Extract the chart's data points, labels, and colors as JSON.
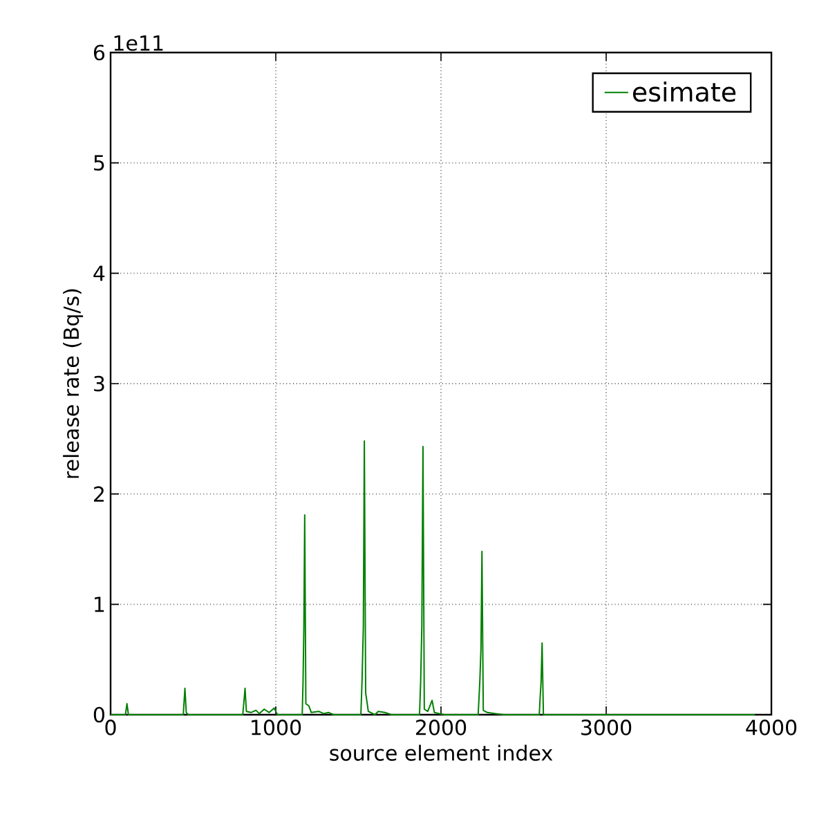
{
  "chart_data": {
    "type": "line",
    "xlabel": "source element index",
    "ylabel": "release rate (Bq/s)",
    "annotations": [
      "1e11"
    ],
    "xlim": [
      0,
      4000
    ],
    "xticks": [
      0,
      1000,
      2000,
      3000,
      4000
    ],
    "ylim": [
      0,
      6
    ],
    "yticks": [
      0,
      1,
      2,
      3,
      4,
      5,
      6
    ],
    "grid": true,
    "legend": "top right",
    "line_style": "solid",
    "series": [
      {
        "name": "esimate",
        "color": "#008000",
        "x": [
          0,
          90,
          99,
          108,
          440,
          450,
          458,
          470,
          800,
          806,
          814,
          822,
          850,
          880,
          900,
          930,
          960,
          990,
          1010,
          1160,
          1165,
          1170,
          1175,
          1182,
          1200,
          1215,
          1260,
          1290,
          1320,
          1350,
          1515,
          1522,
          1530,
          1536,
          1544,
          1560,
          1600,
          1620,
          1660,
          1700,
          1870,
          1877,
          1884,
          1891,
          1899,
          1920,
          1946,
          1960,
          1990,
          2020,
          2225,
          2235,
          2242,
          2248,
          2256,
          2280,
          2330,
          2380,
          2595,
          2600,
          2606,
          2612,
          2620,
          3900
        ],
        "values": [
          0,
          0,
          0.1,
          0,
          0,
          0.24,
          0.02,
          0,
          0,
          0.1,
          0.24,
          0.03,
          0.02,
          0.04,
          0.01,
          0.05,
          0.02,
          0.06,
          0,
          0,
          0.3,
          0.8,
          1.81,
          0.1,
          0.08,
          0.02,
          0.03,
          0.01,
          0.02,
          0,
          0,
          0.3,
          0.8,
          2.48,
          0.2,
          0.03,
          0,
          0.03,
          0.02,
          0,
          0,
          0.3,
          0.8,
          2.43,
          0.05,
          0.03,
          0.13,
          0.02,
          0.01,
          0,
          0,
          0.3,
          0.6,
          1.48,
          0.04,
          0.02,
          0.01,
          0,
          0,
          0.15,
          0.3,
          0.65,
          0,
          0
        ]
      }
    ]
  }
}
